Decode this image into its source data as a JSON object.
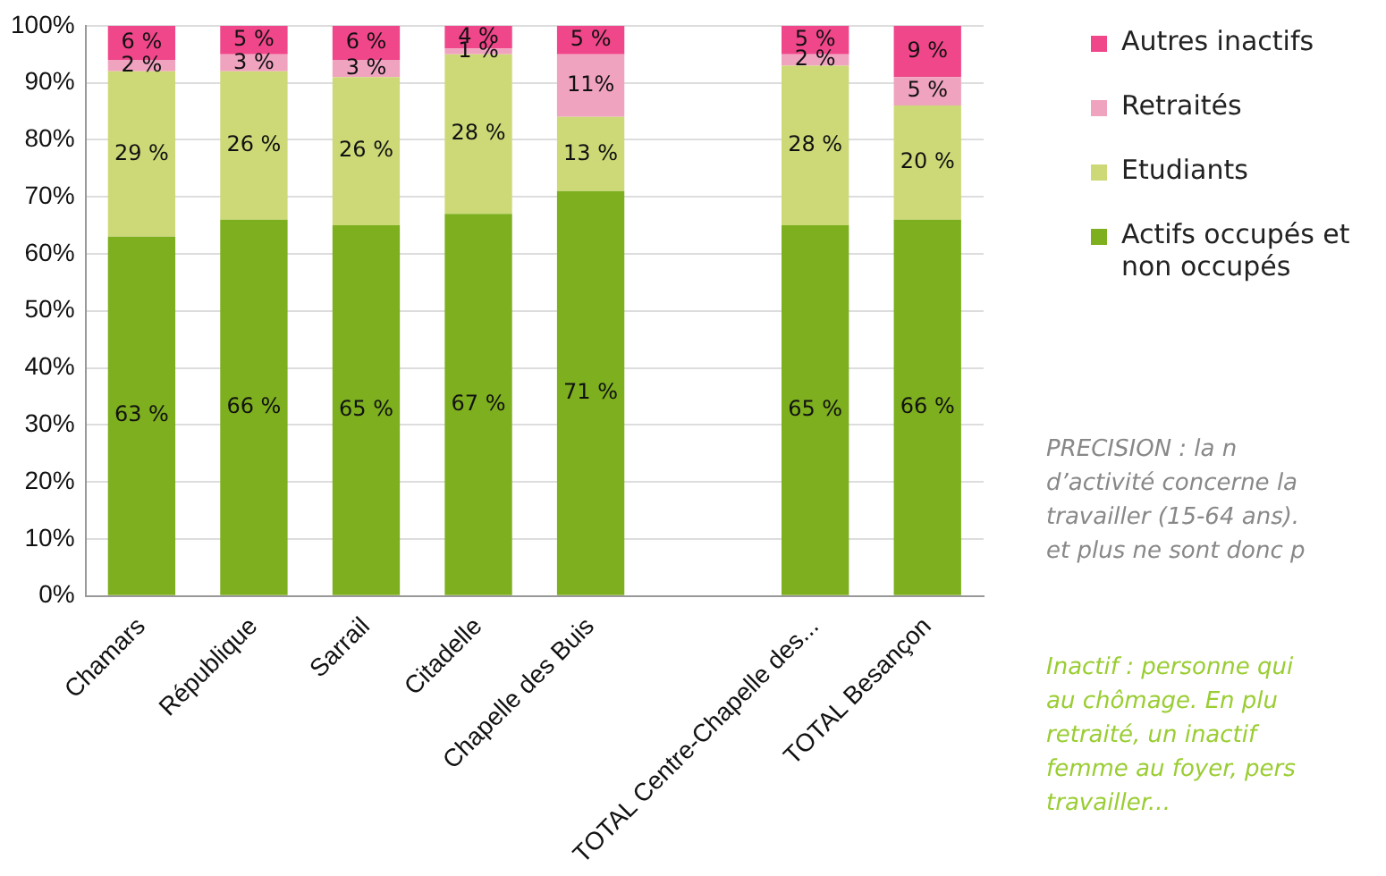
{
  "chart_data": {
    "type": "bar",
    "stacked": true,
    "grid": "y",
    "legend": "right",
    "categories": [
      "Chamars",
      "République",
      "Sarrail",
      "Citadelle",
      "Chapelle des Buis",
      null,
      "TOTAL Centre-Chapelle des...",
      "TOTAL Besançon"
    ],
    "ylim": [
      0,
      100
    ],
    "yticks": [
      {
        "value": 0,
        "label": "0%"
      },
      {
        "value": 10,
        "label": "10%"
      },
      {
        "value": 20,
        "label": "20%"
      },
      {
        "value": 30,
        "label": "30%"
      },
      {
        "value": 40,
        "label": "40%"
      },
      {
        "value": 50,
        "label": "50%"
      },
      {
        "value": 60,
        "label": "60%"
      },
      {
        "value": 70,
        "label": "70%"
      },
      {
        "value": 80,
        "label": "80%"
      },
      {
        "value": 90,
        "label": "90%"
      },
      {
        "value": 100,
        "label": "100%"
      }
    ],
    "series": [
      {
        "name": "Actifs occupés et non occupés",
        "color": "#7daf1e",
        "values": [
          63,
          66,
          65,
          67,
          71,
          null,
          65,
          66
        ],
        "value_labels": [
          "63 %",
          "66 %",
          "65 %",
          "67 %",
          "71 %",
          null,
          "65 %",
          "66 %"
        ]
      },
      {
        "name": "Etudiants",
        "color": "#cdd977",
        "values": [
          29,
          26,
          26,
          28,
          13,
          null,
          28,
          20
        ],
        "value_labels": [
          "29 %",
          "26 %",
          "26 %",
          "28 %",
          "13 %",
          null,
          "28 %",
          "20 %"
        ]
      },
      {
        "name": "Retraités",
        "color": "#f0a3bf",
        "values": [
          2,
          3,
          3,
          1,
          11,
          null,
          2,
          5
        ],
        "value_labels": [
          "2 %",
          "3 %",
          "3 %",
          "1 %",
          "11%",
          null,
          "2 %",
          "5 %"
        ]
      },
      {
        "name": "Autres inactifs",
        "color": "#f0468a",
        "values": [
          6,
          5,
          6,
          4,
          5,
          null,
          5,
          9
        ],
        "value_labels": [
          "6 %",
          "5 %",
          "6 %",
          "4 %",
          "5 %",
          null,
          "5 %",
          "9 %"
        ]
      }
    ],
    "annotations": [
      "PRECISION : la n\nd’activité concerne la\ntravailler (15-64 ans).\net plus ne sont donc p",
      "Inactif : personne qui\nau chômage. En plu\nretraité, un inactif\nfemme au foyer, pers\ntravailler..."
    ]
  }
}
